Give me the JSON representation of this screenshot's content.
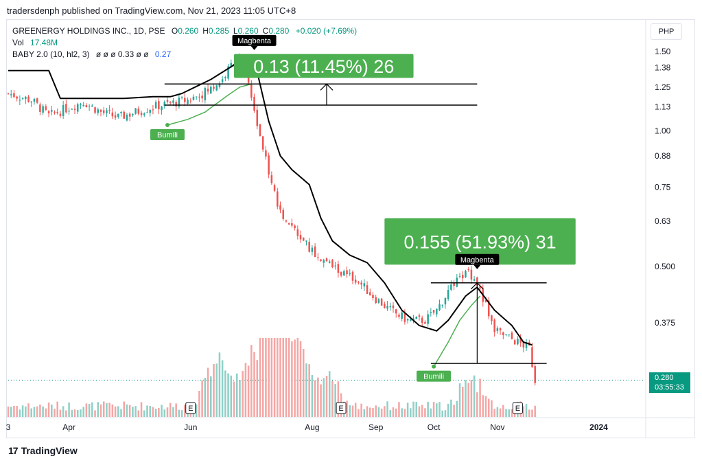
{
  "header": {
    "caption": "tradersdenph published on TradingView.com, Nov 21, 2023 11:05 UTC+8"
  },
  "legend": {
    "symbol": "GREENERGY HOLDINGS INC., 1D, PSE",
    "ohlc": [
      {
        "k": "O",
        "v": "0.260"
      },
      {
        "k": "H",
        "v": "0.285"
      },
      {
        "k": "L",
        "v": "0.260"
      },
      {
        "k": "C",
        "v": "0.280"
      }
    ],
    "change": "+0.020 (+7.69%)",
    "volume_label": "Vol",
    "volume_value": "17.48M",
    "indicator_label": "BABY 2.0 (10, hl2, 3)",
    "indicator_values": "ø ø ø 0.33 ø ø",
    "indicator_last": "0.27"
  },
  "currency": "PHP",
  "last_price": {
    "value": "0.280",
    "countdown": "03:55:33"
  },
  "footer": {
    "brand": "TradingView"
  },
  "colors": {
    "up": "#26a69a",
    "down": "#ef5350",
    "up_vol": "#8fd0c7",
    "down_vol": "#f4a6a4",
    "trail_black": "#000000",
    "trail_green": "#4caf50",
    "box_green": "#4caf50",
    "label_black": "#000000",
    "tag_green": "#089981"
  },
  "chart_data": {
    "type": "candlestick",
    "yaxis": {
      "ticks": [
        1.5,
        1.38,
        1.25,
        1.13,
        1.0,
        0.88,
        0.75,
        0.63,
        0.5,
        0.375
      ],
      "tick_labels": [
        "1.50",
        "1.38",
        "1.25",
        "1.13",
        "1.00",
        "0.88",
        "0.75",
        "0.63",
        "0.500",
        "0.375"
      ],
      "scale": "log",
      "ylim": [
        0.255,
        1.58
      ]
    },
    "xaxis": {
      "labels": [
        {
          "text": "3",
          "day": 0
        },
        {
          "text": "Apr",
          "day": 21
        },
        {
          "text": "Jun",
          "day": 63
        },
        {
          "text": "Aug",
          "day": 105
        },
        {
          "text": "Sep",
          "day": 127
        },
        {
          "text": "Oct",
          "day": 147
        },
        {
          "text": "Nov",
          "day": 169
        },
        {
          "text": "2024",
          "day": 204
        }
      ],
      "max_day": 220
    },
    "anchors": [
      [
        0,
        1.21
      ],
      [
        8,
        1.17
      ],
      [
        14,
        1.08
      ],
      [
        20,
        1.12
      ],
      [
        26,
        1.16
      ],
      [
        32,
        1.1
      ],
      [
        38,
        1.07
      ],
      [
        44,
        1.1
      ],
      [
        50,
        1.13
      ],
      [
        56,
        1.15
      ],
      [
        62,
        1.17
      ],
      [
        66,
        1.2
      ],
      [
        70,
        1.24
      ],
      [
        74,
        1.3
      ],
      [
        77,
        1.4
      ],
      [
        80,
        1.43
      ],
      [
        82,
        1.38
      ],
      [
        84,
        1.2
      ],
      [
        86,
        1.05
      ],
      [
        88,
        0.92
      ],
      [
        90,
        0.8
      ],
      [
        92,
        0.72
      ],
      [
        94,
        0.66
      ],
      [
        97,
        0.63
      ],
      [
        100,
        0.58
      ],
      [
        104,
        0.55
      ],
      [
        108,
        0.52
      ],
      [
        112,
        0.5
      ],
      [
        116,
        0.48
      ],
      [
        120,
        0.47
      ],
      [
        126,
        0.43
      ],
      [
        132,
        0.4
      ],
      [
        138,
        0.38
      ],
      [
        144,
        0.38
      ],
      [
        148,
        0.4
      ],
      [
        152,
        0.44
      ],
      [
        156,
        0.47
      ],
      [
        159,
        0.49
      ],
      [
        162,
        0.46
      ],
      [
        165,
        0.41
      ],
      [
        168,
        0.36
      ],
      [
        172,
        0.35
      ],
      [
        176,
        0.34
      ],
      [
        180,
        0.33
      ],
      [
        182,
        0.28
      ]
    ],
    "trail_black": [
      [
        0,
        1.36
      ],
      [
        14,
        1.36
      ],
      [
        18,
        1.18
      ],
      [
        40,
        1.18
      ],
      [
        50,
        1.19
      ],
      [
        56,
        1.19
      ],
      [
        60,
        1.21
      ],
      [
        70,
        1.3
      ],
      [
        78,
        1.4
      ],
      [
        82,
        1.46
      ],
      [
        84,
        1.42
      ],
      [
        86,
        1.35
      ],
      [
        90,
        1.05
      ],
      [
        94,
        0.88
      ],
      [
        98,
        0.82
      ],
      [
        104,
        0.76
      ],
      [
        108,
        0.64
      ],
      [
        112,
        0.57
      ],
      [
        118,
        0.53
      ],
      [
        124,
        0.51
      ],
      [
        130,
        0.46
      ],
      [
        136,
        0.4
      ],
      [
        142,
        0.37
      ],
      [
        148,
        0.36
      ],
      [
        152,
        0.38
      ],
      [
        158,
        0.43
      ],
      [
        162,
        0.45
      ],
      [
        168,
        0.4
      ],
      [
        174,
        0.37
      ],
      [
        178,
        0.34
      ],
      [
        181,
        0.335
      ]
    ],
    "trail_green": [
      [
        55,
        1.03
      ],
      [
        62,
        1.06
      ],
      [
        68,
        1.1
      ],
      [
        72,
        1.15
      ],
      [
        76,
        1.2
      ],
      [
        80,
        1.25
      ],
      [
        84,
        1.27
      ],
      [
        147,
        0.3
      ],
      [
        152,
        0.34
      ],
      [
        156,
        0.38
      ],
      [
        160,
        0.41
      ],
      [
        163,
        0.43
      ]
    ],
    "volume_profile": {
      "up_bias_days": [
        [
          0,
          70
        ],
        [
          140,
          160
        ]
      ],
      "peak_days": [
        [
          72,
          1.0
        ],
        [
          84,
          0.9
        ],
        [
          90,
          1.0
        ],
        [
          94,
          1.0
        ],
        [
          100,
          0.95
        ],
        [
          110,
          0.6
        ],
        [
          160,
          0.55
        ]
      ]
    },
    "earnings_markers": [
      {
        "text": "E",
        "day": 63
      },
      {
        "text": "E",
        "day": 115
      },
      {
        "text": "E",
        "day": 176
      }
    ],
    "hlines": [
      {
        "y": 1.27,
        "x0": 54,
        "x1": 162
      },
      {
        "y": 1.14,
        "x0": 54,
        "x1": 162
      },
      {
        "y": 0.46,
        "x0": 146,
        "x1": 186
      },
      {
        "y": 0.305,
        "x0": 146,
        "x1": 186
      }
    ],
    "measure_arrows": [
      {
        "day": 110,
        "y0": 1.14,
        "y1": 1.27
      },
      {
        "day": 162,
        "y0": 0.305,
        "y1": 0.46
      }
    ],
    "boxes": [
      {
        "text": "0.13 (11.45%) 26",
        "day0": 78,
        "day1": 140,
        "y_top": 1.48,
        "y_bottom": 1.31
      },
      {
        "text": "0.155 (51.93%) 31",
        "day0": 130,
        "day1": 196,
        "y_top": 0.64,
        "y_bottom": 0.505
      }
    ],
    "signals": [
      {
        "text": "Magbenta",
        "kind": "sell",
        "day": 85,
        "y": 1.5
      },
      {
        "text": "Bumili",
        "kind": "buy",
        "day": 55,
        "y": 1.03
      },
      {
        "text": "Magbenta",
        "kind": "sell",
        "day": 162,
        "y": 0.49
      },
      {
        "text": "Bumili",
        "kind": "buy",
        "day": 147,
        "y": 0.3
      }
    ],
    "last_value": 0.28
  }
}
